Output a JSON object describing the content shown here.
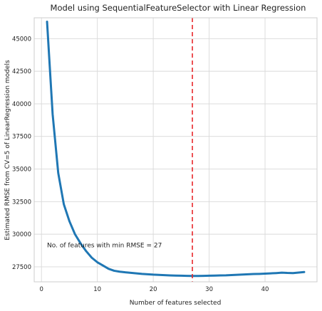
{
  "chart_data": {
    "type": "line",
    "title": "Model using SequentialFeatureSelector with Linear Regression",
    "xlabel": "Number of features selected",
    "ylabel": "Estimated RMSE from CV=5 of LinearRegression models",
    "xlim": [
      -1.3,
      49.3
    ],
    "ylim": [
      26350,
      46600
    ],
    "xticks": [
      0,
      10,
      20,
      30,
      40
    ],
    "yticks": [
      27500,
      30000,
      32500,
      35000,
      37500,
      40000,
      42500,
      45000
    ],
    "xtick_labels": [
      "0",
      "10",
      "20",
      "30",
      "40"
    ],
    "ytick_labels": [
      "27500",
      "30000",
      "32500",
      "35000",
      "37500",
      "40000",
      "42500",
      "45000"
    ],
    "grid": true,
    "series": [
      {
        "color": "#1f77b4",
        "x": [
          1,
          2,
          3,
          4,
          5,
          6,
          7,
          8,
          9,
          10,
          11,
          12,
          13,
          14,
          15,
          16,
          17,
          18,
          19,
          20,
          21,
          22,
          23,
          24,
          25,
          26,
          27,
          28,
          29,
          30,
          31,
          32,
          33,
          34,
          35,
          36,
          37,
          38,
          39,
          40,
          41,
          42,
          43,
          44,
          45,
          46,
          47
        ],
        "y": [
          46300,
          39200,
          34700,
          32300,
          31000,
          30000,
          29300,
          28700,
          28200,
          27850,
          27600,
          27350,
          27200,
          27130,
          27080,
          27040,
          27000,
          26960,
          26930,
          26900,
          26880,
          26860,
          26840,
          26830,
          26820,
          26810,
          26800,
          26800,
          26810,
          26820,
          26830,
          26840,
          26850,
          26870,
          26890,
          26910,
          26930,
          26950,
          26960,
          26980,
          27000,
          27020,
          27050,
          27030,
          27020,
          27060,
          27100
        ]
      }
    ],
    "vline": {
      "x": 27,
      "color": "#e8272b",
      "style": "dashed"
    },
    "annotation": {
      "text": "No. of features with min RMSE = 27",
      "x": 1,
      "y": 29000
    }
  }
}
